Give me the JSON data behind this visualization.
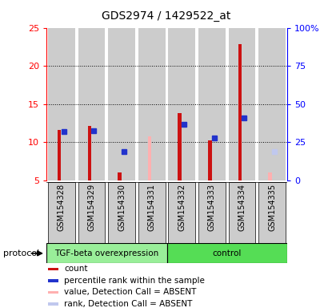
{
  "title": "GDS2974 / 1429522_at",
  "samples": [
    "GSM154328",
    "GSM154329",
    "GSM154330",
    "GSM154331",
    "GSM154332",
    "GSM154333",
    "GSM154334",
    "GSM154335"
  ],
  "group_labels": [
    "TGF-beta overexpression",
    "control"
  ],
  "count_values": [
    11.6,
    12.1,
    6.0,
    null,
    13.8,
    10.2,
    22.9,
    null
  ],
  "rank_values": [
    11.4,
    11.5,
    null,
    null,
    12.3,
    10.5,
    13.2,
    null
  ],
  "absent_value_values": [
    null,
    null,
    null,
    10.7,
    null,
    null,
    null,
    6.0
  ],
  "absent_rank_values": [
    null,
    null,
    null,
    null,
    null,
    null,
    null,
    8.8
  ],
  "blue_rank_absent": [
    null,
    null,
    8.8,
    null,
    null,
    null,
    null,
    null
  ],
  "ylim_left": [
    5,
    25
  ],
  "ylim_right": [
    0,
    100
  ],
  "yticks_left": [
    5,
    10,
    15,
    20,
    25
  ],
  "ytick_labels_right": [
    "0",
    "25",
    "50",
    "75",
    "100%"
  ],
  "count_color": "#CC1111",
  "rank_color": "#2233CC",
  "absent_value_color": "#FFB0B0",
  "absent_rank_color": "#C0C8EE",
  "sample_bg_color": "#CCCCCC",
  "protocol_label": "protocol",
  "group1_color": "#99EE99",
  "group2_color": "#55DD55",
  "legend_items": [
    {
      "label": "count",
      "color": "#CC1111"
    },
    {
      "label": "percentile rank within the sample",
      "color": "#2233CC"
    },
    {
      "label": "value, Detection Call = ABSENT",
      "color": "#FFB0B0"
    },
    {
      "label": "rank, Detection Call = ABSENT",
      "color": "#C0C8EE"
    }
  ]
}
